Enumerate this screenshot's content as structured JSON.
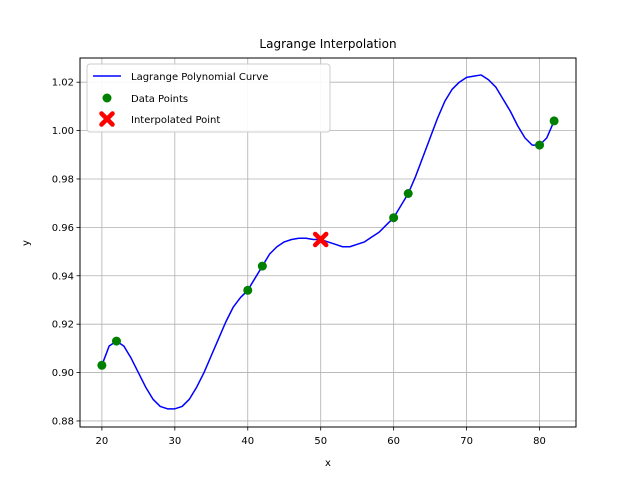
{
  "chart_data": {
    "type": "line",
    "title": "Lagrange Interpolation",
    "xlabel": "x",
    "ylabel": "y",
    "xlim": [
      17,
      85
    ],
    "ylim": [
      0.8775,
      1.03
    ],
    "xticks": [
      20,
      30,
      40,
      50,
      60,
      70,
      80
    ],
    "yticks": [
      0.88,
      0.9,
      0.92,
      0.94,
      0.96,
      0.98,
      1.0,
      1.02
    ],
    "ytick_labels": [
      "0.88",
      "0.90",
      "0.92",
      "0.94",
      "0.96",
      "0.98",
      "1.00",
      "1.02"
    ],
    "grid": true,
    "legend_position": "top-left",
    "series": [
      {
        "name": "Lagrange Polynomial Curve",
        "kind": "line",
        "color": "#0000ff",
        "x": [
          20,
          21,
          22,
          23,
          24,
          25,
          26,
          27,
          28,
          29,
          30,
          31,
          32,
          33,
          34,
          35,
          36,
          37,
          38,
          39,
          40,
          41,
          42,
          43,
          44,
          45,
          46,
          47,
          48,
          49,
          50,
          51,
          52,
          53,
          54,
          55,
          56,
          57,
          58,
          59,
          60,
          61,
          62,
          63,
          64,
          65,
          66,
          67,
          68,
          69,
          70,
          71,
          72,
          73,
          74,
          75,
          76,
          77,
          78,
          79,
          80,
          81,
          82
        ],
        "y": [
          0.903,
          0.911,
          0.913,
          0.911,
          0.906,
          0.9,
          0.894,
          0.889,
          0.886,
          0.885,
          0.885,
          0.886,
          0.889,
          0.894,
          0.9,
          0.907,
          0.914,
          0.921,
          0.927,
          0.931,
          0.934,
          0.939,
          0.944,
          0.949,
          0.952,
          0.954,
          0.955,
          0.9555,
          0.9555,
          0.955,
          0.955,
          0.954,
          0.953,
          0.952,
          0.952,
          0.953,
          0.954,
          0.956,
          0.958,
          0.961,
          0.964,
          0.969,
          0.974,
          0.981,
          0.989,
          0.997,
          1.005,
          1.012,
          1.017,
          1.02,
          1.022,
          1.0225,
          1.023,
          1.021,
          1.018,
          1.013,
          1.008,
          1.002,
          0.997,
          0.994,
          0.994,
          0.997,
          1.004
        ]
      },
      {
        "name": "Data Points",
        "kind": "scatter",
        "color": "#008000",
        "x": [
          20,
          22,
          40,
          42,
          60,
          62,
          80,
          82
        ],
        "y": [
          0.903,
          0.913,
          0.934,
          0.944,
          0.964,
          0.974,
          0.994,
          1.004
        ]
      },
      {
        "name": "Interpolated Point",
        "kind": "marker-x",
        "color": "#ff0000",
        "x": [
          50
        ],
        "y": [
          0.955
        ]
      }
    ]
  }
}
